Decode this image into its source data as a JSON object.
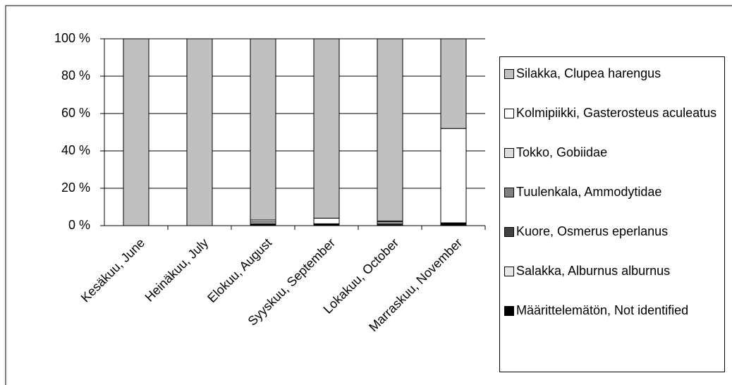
{
  "chart_data": {
    "type": "stacked_bar",
    "categories": [
      "Kesäkuu, June",
      "Heinäkuu, July",
      "Elokuu, August",
      "Syyskuu, September",
      "Lokakuu, October",
      "Marraskuu, November"
    ],
    "series": [
      {
        "name": "Silakka, Clupea harengus",
        "color": "#c0c0c0",
        "values": [
          100,
          100,
          97,
          96,
          97.5,
          48
        ]
      },
      {
        "name": "Kolmipiikki, Gasterosteus aculeatus",
        "color": "#ffffff",
        "values": [
          0,
          0,
          1,
          3,
          0.5,
          50.5
        ]
      },
      {
        "name": "Tokko, Gobiidae",
        "color": "#dcdcdc",
        "values": [
          0,
          0,
          1,
          0,
          1,
          0
        ]
      },
      {
        "name": "Tuulenkala, Ammodytidae",
        "color": "#808080",
        "values": [
          0,
          0,
          0,
          0,
          0,
          0
        ]
      },
      {
        "name": "Kuore, Osmerus eperlanus",
        "color": "#404040",
        "values": [
          0,
          0,
          0.5,
          0,
          0,
          0
        ]
      },
      {
        "name": "Salakka, Alburnus alburnus",
        "color": "#e8e8e8",
        "values": [
          0,
          0,
          0,
          0,
          0.5,
          0
        ]
      },
      {
        "name": "Määrittelemätön, Not identified",
        "color": "#000000",
        "values": [
          0,
          0,
          0.5,
          1,
          0.5,
          1.5
        ]
      }
    ],
    "ylim": [
      0,
      100
    ],
    "yticks": [
      {
        "value": 0,
        "label": "0 %"
      },
      {
        "value": 20,
        "label": "20 %"
      },
      {
        "value": 40,
        "label": "40 %"
      },
      {
        "value": 60,
        "label": "60 %"
      },
      {
        "value": 80,
        "label": "80 %"
      },
      {
        "value": 100,
        "label": "100 %"
      }
    ],
    "grid": true,
    "legend": "right"
  }
}
